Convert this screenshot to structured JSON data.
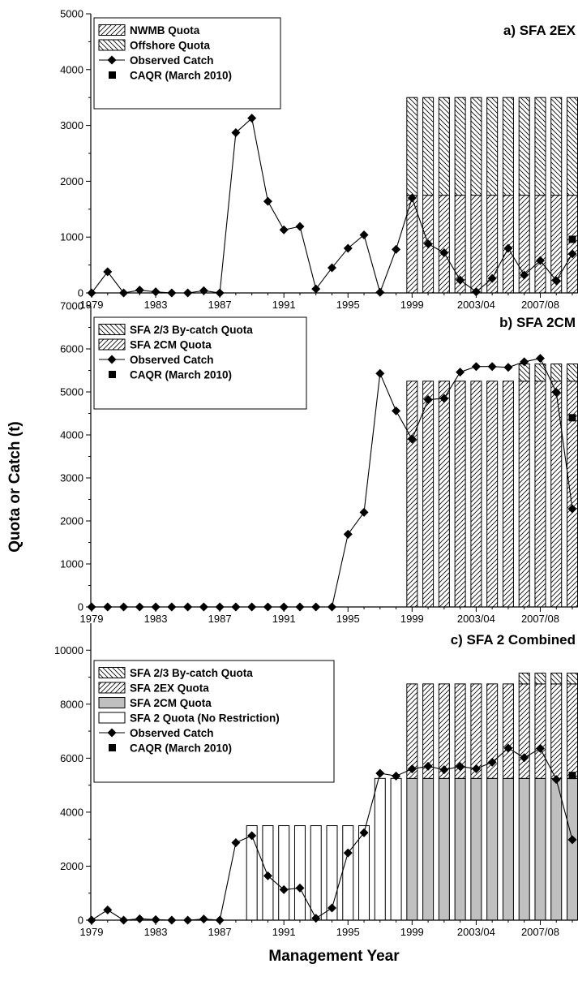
{
  "ylabel": "Quota or Catch (t)",
  "xlabel": "Management Year",
  "x_tick_labels": [
    "1979",
    "1983",
    "1987",
    "1991",
    "1995",
    "1999",
    "2003/04",
    "2007/08"
  ],
  "x_tick_years": [
    1979,
    1983,
    1987,
    1991,
    1995,
    1999,
    2003,
    2007
  ],
  "years": [
    1979,
    1980,
    1981,
    1982,
    1983,
    1984,
    1985,
    1986,
    1987,
    1988,
    1989,
    1990,
    1991,
    1992,
    1993,
    1994,
    1995,
    1996,
    1997,
    1998,
    1999,
    2000,
    2001,
    2002,
    2003,
    2004,
    2005,
    2006,
    2007,
    2008,
    2009
  ],
  "colors": {
    "stroke": "#000000",
    "gray_fill": "#c0c0c0",
    "background": "#ffffff"
  },
  "chart_data": [
    {
      "type": "bar",
      "title": "a) SFA 2EX",
      "ylim": [
        0,
        5000
      ],
      "y_ticks": [
        0,
        1000,
        2000,
        3000,
        4000,
        5000
      ],
      "legend_placement": "top-left",
      "legend": [
        "NWMB Quota",
        "Offshore Quota",
        "Observed Catch",
        "CAQR (March 2010)"
      ],
      "stacks": [
        {
          "name": "NWMB Quota",
          "pattern": "fwd",
          "values": [
            0,
            0,
            0,
            0,
            0,
            0,
            0,
            0,
            0,
            0,
            0,
            0,
            0,
            0,
            0,
            0,
            0,
            0,
            0,
            0,
            1750,
            1750,
            1750,
            1750,
            1750,
            1750,
            1750,
            1750,
            1750,
            1750,
            1750
          ]
        },
        {
          "name": "Offshore Quota",
          "pattern": "back",
          "values": [
            0,
            0,
            0,
            0,
            0,
            0,
            0,
            0,
            0,
            0,
            0,
            0,
            0,
            0,
            0,
            0,
            0,
            0,
            0,
            0,
            1750,
            1750,
            1750,
            1750,
            1750,
            1750,
            1750,
            1750,
            1750,
            1750,
            1750
          ]
        }
      ],
      "catch": {
        "name": "Observed Catch",
        "values": [
          0,
          380,
          0,
          50,
          20,
          0,
          0,
          40,
          0,
          2870,
          3130,
          1640,
          1130,
          1190,
          70,
          450,
          800,
          1040,
          10,
          780,
          1700,
          880,
          720,
          230,
          20,
          260,
          800,
          320,
          580,
          220,
          700
        ]
      },
      "caqr": {
        "name": "CAQR (March 2010)",
        "year": 2009,
        "value": 960
      }
    },
    {
      "type": "bar",
      "title": "b) SFA 2CM",
      "ylim": [
        0,
        7000
      ],
      "y_ticks": [
        0,
        1000,
        2000,
        3000,
        4000,
        5000,
        6000,
        7000
      ],
      "legend_placement": "top-left",
      "legend": [
        "SFA 2/3 By-catch Quota",
        "SFA 2CM Quota",
        "Observed Catch",
        "CAQR (March 2010)"
      ],
      "stacks": [
        {
          "name": "SFA 2CM Quota",
          "pattern": "fwd",
          "values": [
            0,
            0,
            0,
            0,
            0,
            0,
            0,
            0,
            0,
            0,
            0,
            0,
            0,
            0,
            0,
            0,
            0,
            0,
            0,
            0,
            5250,
            5250,
            5250,
            5250,
            5250,
            5250,
            5250,
            5250,
            5250,
            5250,
            5250
          ]
        },
        {
          "name": "SFA 2/3 By-catch Quota",
          "pattern": "back",
          "values": [
            0,
            0,
            0,
            0,
            0,
            0,
            0,
            0,
            0,
            0,
            0,
            0,
            0,
            0,
            0,
            0,
            0,
            0,
            0,
            0,
            0,
            0,
            0,
            0,
            0,
            0,
            0,
            400,
            400,
            400,
            400
          ]
        }
      ],
      "catch": {
        "name": "Observed Catch",
        "values": [
          0,
          0,
          0,
          0,
          0,
          0,
          0,
          0,
          0,
          0,
          0,
          0,
          0,
          0,
          0,
          0,
          1690,
          2200,
          5430,
          4560,
          3900,
          4820,
          4850,
          5460,
          5590,
          5590,
          5570,
          5700,
          5780,
          4990,
          2280
        ]
      },
      "caqr": {
        "name": "CAQR (March 2010)",
        "year": 2009,
        "value": 4400
      }
    },
    {
      "type": "bar",
      "title": "c) SFA 2 Combined",
      "ylim": [
        0,
        11000
      ],
      "y_ticks": [
        0,
        2000,
        4000,
        6000,
        8000,
        10000
      ],
      "legend_placement": "top-left",
      "legend": [
        "SFA 2/3 By-catch Quota",
        "SFA 2EX Quota",
        "SFA 2CM Quota",
        "SFA 2 Quota (No Restriction)",
        "Observed Catch",
        "CAQR (March 2010)"
      ],
      "stacks": [
        {
          "name": "SFA 2 Quota (No Restriction)",
          "pattern": "white",
          "values": [
            0,
            0,
            0,
            0,
            0,
            0,
            0,
            0,
            0,
            0,
            3500,
            3500,
            3500,
            3500,
            3500,
            3500,
            3500,
            3500,
            5250,
            5250,
            0,
            0,
            0,
            0,
            0,
            0,
            0,
            0,
            0,
            0,
            0
          ]
        },
        {
          "name": "SFA 2CM Quota",
          "pattern": "gray",
          "values": [
            0,
            0,
            0,
            0,
            0,
            0,
            0,
            0,
            0,
            0,
            0,
            0,
            0,
            0,
            0,
            0,
            0,
            0,
            0,
            0,
            5250,
            5250,
            5250,
            5250,
            5250,
            5250,
            5250,
            5250,
            5250,
            5250,
            5250
          ]
        },
        {
          "name": "SFA 2EX Quota",
          "pattern": "fwd",
          "values": [
            0,
            0,
            0,
            0,
            0,
            0,
            0,
            0,
            0,
            0,
            0,
            0,
            0,
            0,
            0,
            0,
            0,
            0,
            0,
            0,
            3500,
            3500,
            3500,
            3500,
            3500,
            3500,
            3500,
            3500,
            3500,
            3500,
            3500
          ]
        },
        {
          "name": "SFA 2/3 By-catch Quota",
          "pattern": "back",
          "values": [
            0,
            0,
            0,
            0,
            0,
            0,
            0,
            0,
            0,
            0,
            0,
            0,
            0,
            0,
            0,
            0,
            0,
            0,
            0,
            0,
            0,
            0,
            0,
            0,
            0,
            0,
            0,
            400,
            400,
            400,
            400
          ]
        }
      ],
      "catch": {
        "name": "Observed Catch",
        "values": [
          0,
          380,
          0,
          50,
          20,
          0,
          0,
          40,
          0,
          2870,
          3130,
          1640,
          1130,
          1190,
          70,
          450,
          2490,
          3240,
          5440,
          5340,
          5600,
          5700,
          5570,
          5690,
          5610,
          5850,
          6370,
          6020,
          6360,
          5210,
          2980
        ]
      },
      "caqr": {
        "name": "CAQR (March 2010)",
        "year": 2009,
        "value": 5360
      }
    }
  ]
}
